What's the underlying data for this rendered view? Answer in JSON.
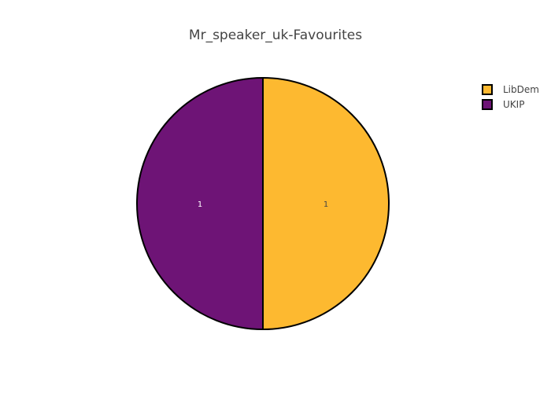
{
  "chart_data": {
    "type": "pie",
    "title": "Mr_speaker_uk-Favourites",
    "categories": [
      "LibDem",
      "UKIP"
    ],
    "values": [
      1,
      1
    ],
    "colors": [
      "#FDB930",
      "#6E1476"
    ],
    "label_colors": [
      "#444444",
      "#FFFFFF"
    ],
    "outline_color": "#000000",
    "legend_position": "top-right",
    "sort": "clockwise-from-top",
    "show_values_in_slices": true
  }
}
